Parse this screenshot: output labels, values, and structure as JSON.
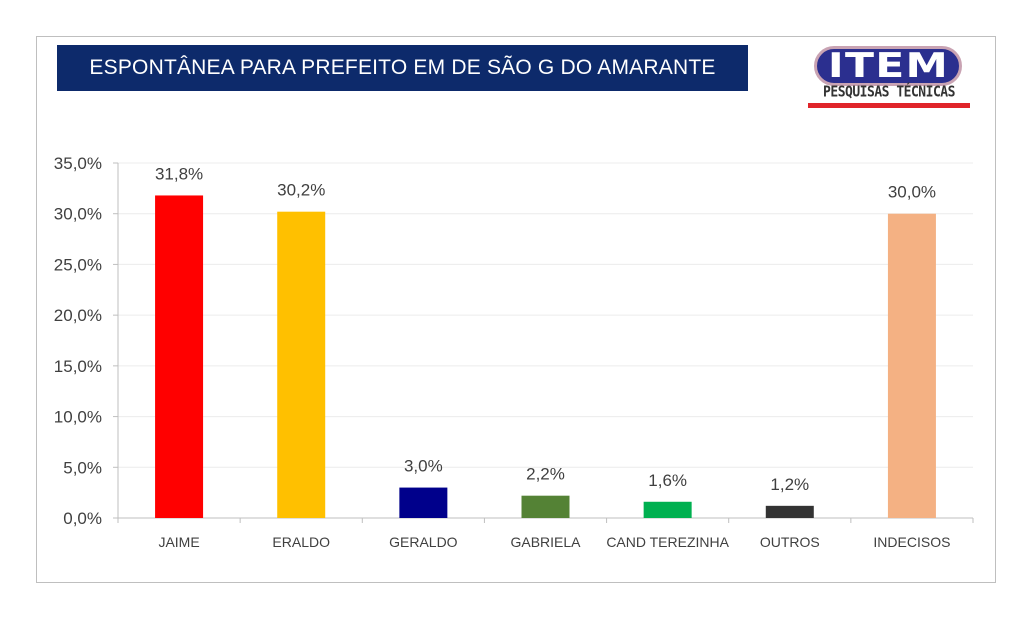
{
  "header": {
    "title": "ESPONTÂNEA PARA PREFEITO EM DE SÃO G DO AMARANTE",
    "logo_main": "ITEM",
    "logo_sub": "PESQUISAS TÉCNICAS"
  },
  "chart_data": {
    "type": "bar",
    "title": "ESPONTÂNEA PARA PREFEITO EM DE SÃO G DO AMARANTE",
    "xlabel": "",
    "ylabel": "",
    "ylim": [
      0,
      35
    ],
    "yticks": [
      0,
      5,
      10,
      15,
      20,
      25,
      30,
      35
    ],
    "ytick_labels": [
      "0,0%",
      "5,0%",
      "10,0%",
      "15,0%",
      "20,0%",
      "25,0%",
      "30,0%",
      "35,0%"
    ],
    "grid": true,
    "legend": "none",
    "categories": [
      "JAIME",
      "ERALDO",
      "GERALDO",
      "GABRIELA",
      "CAND TEREZINHA",
      "OUTROS",
      "INDECISOS"
    ],
    "values": [
      31.8,
      30.2,
      3.0,
      2.2,
      1.6,
      1.2,
      30.0
    ],
    "value_labels": [
      "31,8%",
      "30,2%",
      "3,0%",
      "2,2%",
      "1,6%",
      "1,2%",
      "30,0%"
    ],
    "colors": [
      "#ff0000",
      "#ffc000",
      "#00008b",
      "#548235",
      "#00b050",
      "#333333",
      "#f4b183"
    ]
  }
}
